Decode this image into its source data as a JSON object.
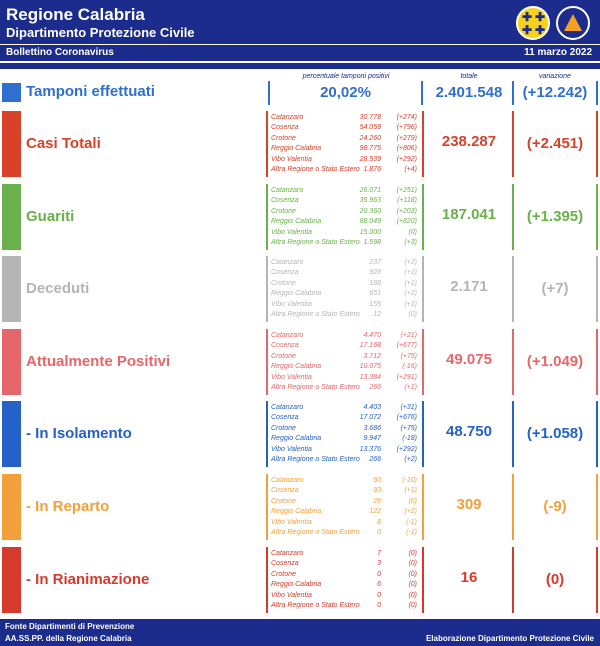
{
  "header": {
    "title": "Regione Calabria",
    "subtitle": "Dipartimento Protezione Civile",
    "bulletin": "Bollettino Coronavirus",
    "date": "11 marzo 2022"
  },
  "columns": {
    "percentuale": "percentuale tamponi positivi",
    "totale": "totale",
    "variazione": "variazione"
  },
  "tamponi": {
    "label": "Tamponi effettuati",
    "percentuale": "20,02%",
    "totale": "2.401.548",
    "variazione": "(+12.242)"
  },
  "sections": [
    {
      "label": "Casi Totali",
      "color": "#d8412a",
      "totale": "238.287",
      "variazione": "(+2.451)",
      "rows": [
        {
          "name": "Catanzaro",
          "value": "30.778",
          "delta": "(+274)"
        },
        {
          "name": "Cosenza",
          "value": "54.059",
          "delta": "(+796)"
        },
        {
          "name": "Crotone",
          "value": "24.260",
          "delta": "(+279)"
        },
        {
          "name": "Reggio Calabria",
          "value": "98.775",
          "delta": "(+806)"
        },
        {
          "name": "Vibo Valentia",
          "value": "28.539",
          "delta": "(+292)"
        },
        {
          "name": "Altra Regione o Stato Estero",
          "value": "1.876",
          "delta": "(+4)"
        }
      ]
    },
    {
      "label": "Guariti",
      "color": "#6ab04c",
      "totale": "187.041",
      "variazione": "(+1.395)",
      "rows": [
        {
          "name": "Catanzaro",
          "value": "26.071",
          "delta": "(+251)"
        },
        {
          "name": "Cosenza",
          "value": "35.963",
          "delta": "(+118)"
        },
        {
          "name": "Crotone",
          "value": "20.360",
          "delta": "(+203)"
        },
        {
          "name": "Reggio Calabria",
          "value": "88.049",
          "delta": "(+820)"
        },
        {
          "name": "Vibo Valentia",
          "value": "15.000",
          "delta": "(0)"
        },
        {
          "name": "Altra Regione o Stato Estero",
          "value": "1.598",
          "delta": "(+3)"
        }
      ]
    },
    {
      "label": "Deceduti",
      "color": "#b5b5b5",
      "totale": "2.171",
      "variazione": "(+7)",
      "rows": [
        {
          "name": "Catanzaro",
          "value": "237",
          "delta": "(+2)"
        },
        {
          "name": "Cosenza",
          "value": "928",
          "delta": "(+1)"
        },
        {
          "name": "Crotone",
          "value": "188",
          "delta": "(+1)"
        },
        {
          "name": "Reggio Calabria",
          "value": "651",
          "delta": "(+2)"
        },
        {
          "name": "Vibo Valentia",
          "value": "155",
          "delta": "(+1)"
        },
        {
          "name": "Altra Regione o Stato Estero",
          "value": "12",
          "delta": "(0)"
        }
      ]
    },
    {
      "label": "Attualmente Positivi",
      "color": "#e5676a",
      "totale": "49.075",
      "variazione": "(+1.049)",
      "rows": [
        {
          "name": "Catanzaro",
          "value": "4.470",
          "delta": "(+21)"
        },
        {
          "name": "Cosenza",
          "value": "17.168",
          "delta": "(+677)"
        },
        {
          "name": "Crotone",
          "value": "3.712",
          "delta": "(+75)"
        },
        {
          "name": "Reggio Calabria",
          "value": "10.075",
          "delta": "(-16)"
        },
        {
          "name": "Vibo Valentia",
          "value": "13.384",
          "delta": "(+291)"
        },
        {
          "name": "Altra Regione o Stato Estero",
          "value": "266",
          "delta": "(+1)"
        }
      ]
    },
    {
      "label": "- In Isolamento",
      "color": "#2461c9",
      "totale": "48.750",
      "variazione": "(+1.058)",
      "rows": [
        {
          "name": "Catanzaro",
          "value": "4.403",
          "delta": "(+31)"
        },
        {
          "name": "Cosenza",
          "value": "17.072",
          "delta": "(+676)"
        },
        {
          "name": "Crotone",
          "value": "3.686",
          "delta": "(+75)"
        },
        {
          "name": "Reggio Calabria",
          "value": "9.947",
          "delta": "(-18)"
        },
        {
          "name": "Vibo Valentia",
          "value": "13.376",
          "delta": "(+292)"
        },
        {
          "name": "Altra Regione o Stato Estero",
          "value": "266",
          "delta": "(+2)"
        }
      ]
    },
    {
      "label": "- In Reparto",
      "color": "#f2a03c",
      "totale": "309",
      "variazione": "(-9)",
      "rows": [
        {
          "name": "Catanzaro",
          "value": "60",
          "delta": "(-10)"
        },
        {
          "name": "Cosenza",
          "value": "93",
          "delta": "(+1)"
        },
        {
          "name": "Crotone",
          "value": "26",
          "delta": "(0)"
        },
        {
          "name": "Reggio Calabria",
          "value": "122",
          "delta": "(+2)"
        },
        {
          "name": "Vibo Valentia",
          "value": "8",
          "delta": "(-1)"
        },
        {
          "name": "Altra Regione o Stato Estero",
          "value": "0",
          "delta": "(-1)"
        }
      ]
    },
    {
      "label": "- In Rianimazione",
      "color": "#d63a2c",
      "totale": "16",
      "variazione": "(0)",
      "rows": [
        {
          "name": "Catanzaro",
          "value": "7",
          "delta": "(0)"
        },
        {
          "name": "Cosenza",
          "value": "3",
          "delta": "(0)"
        },
        {
          "name": "Crotone",
          "value": "0",
          "delta": "(0)"
        },
        {
          "name": "Reggio Calabria",
          "value": "6",
          "delta": "(0)"
        },
        {
          "name": "Vibo Valentia",
          "value": "0",
          "delta": "(0)"
        },
        {
          "name": "Altra Regione o Stato Estero",
          "value": "0",
          "delta": "(0)"
        }
      ]
    }
  ],
  "footer": {
    "source_line1": "Fonte Dipartimenti di Prevenzione",
    "source_line2": "AA.SS.PP.  della Regione Calabria",
    "credit": "Elaborazione Dipartimento Protezione Civile"
  },
  "icons": {
    "crest": "regione-calabria-crest-icon",
    "protezione_civile": "protezione-civile-logo-icon"
  }
}
